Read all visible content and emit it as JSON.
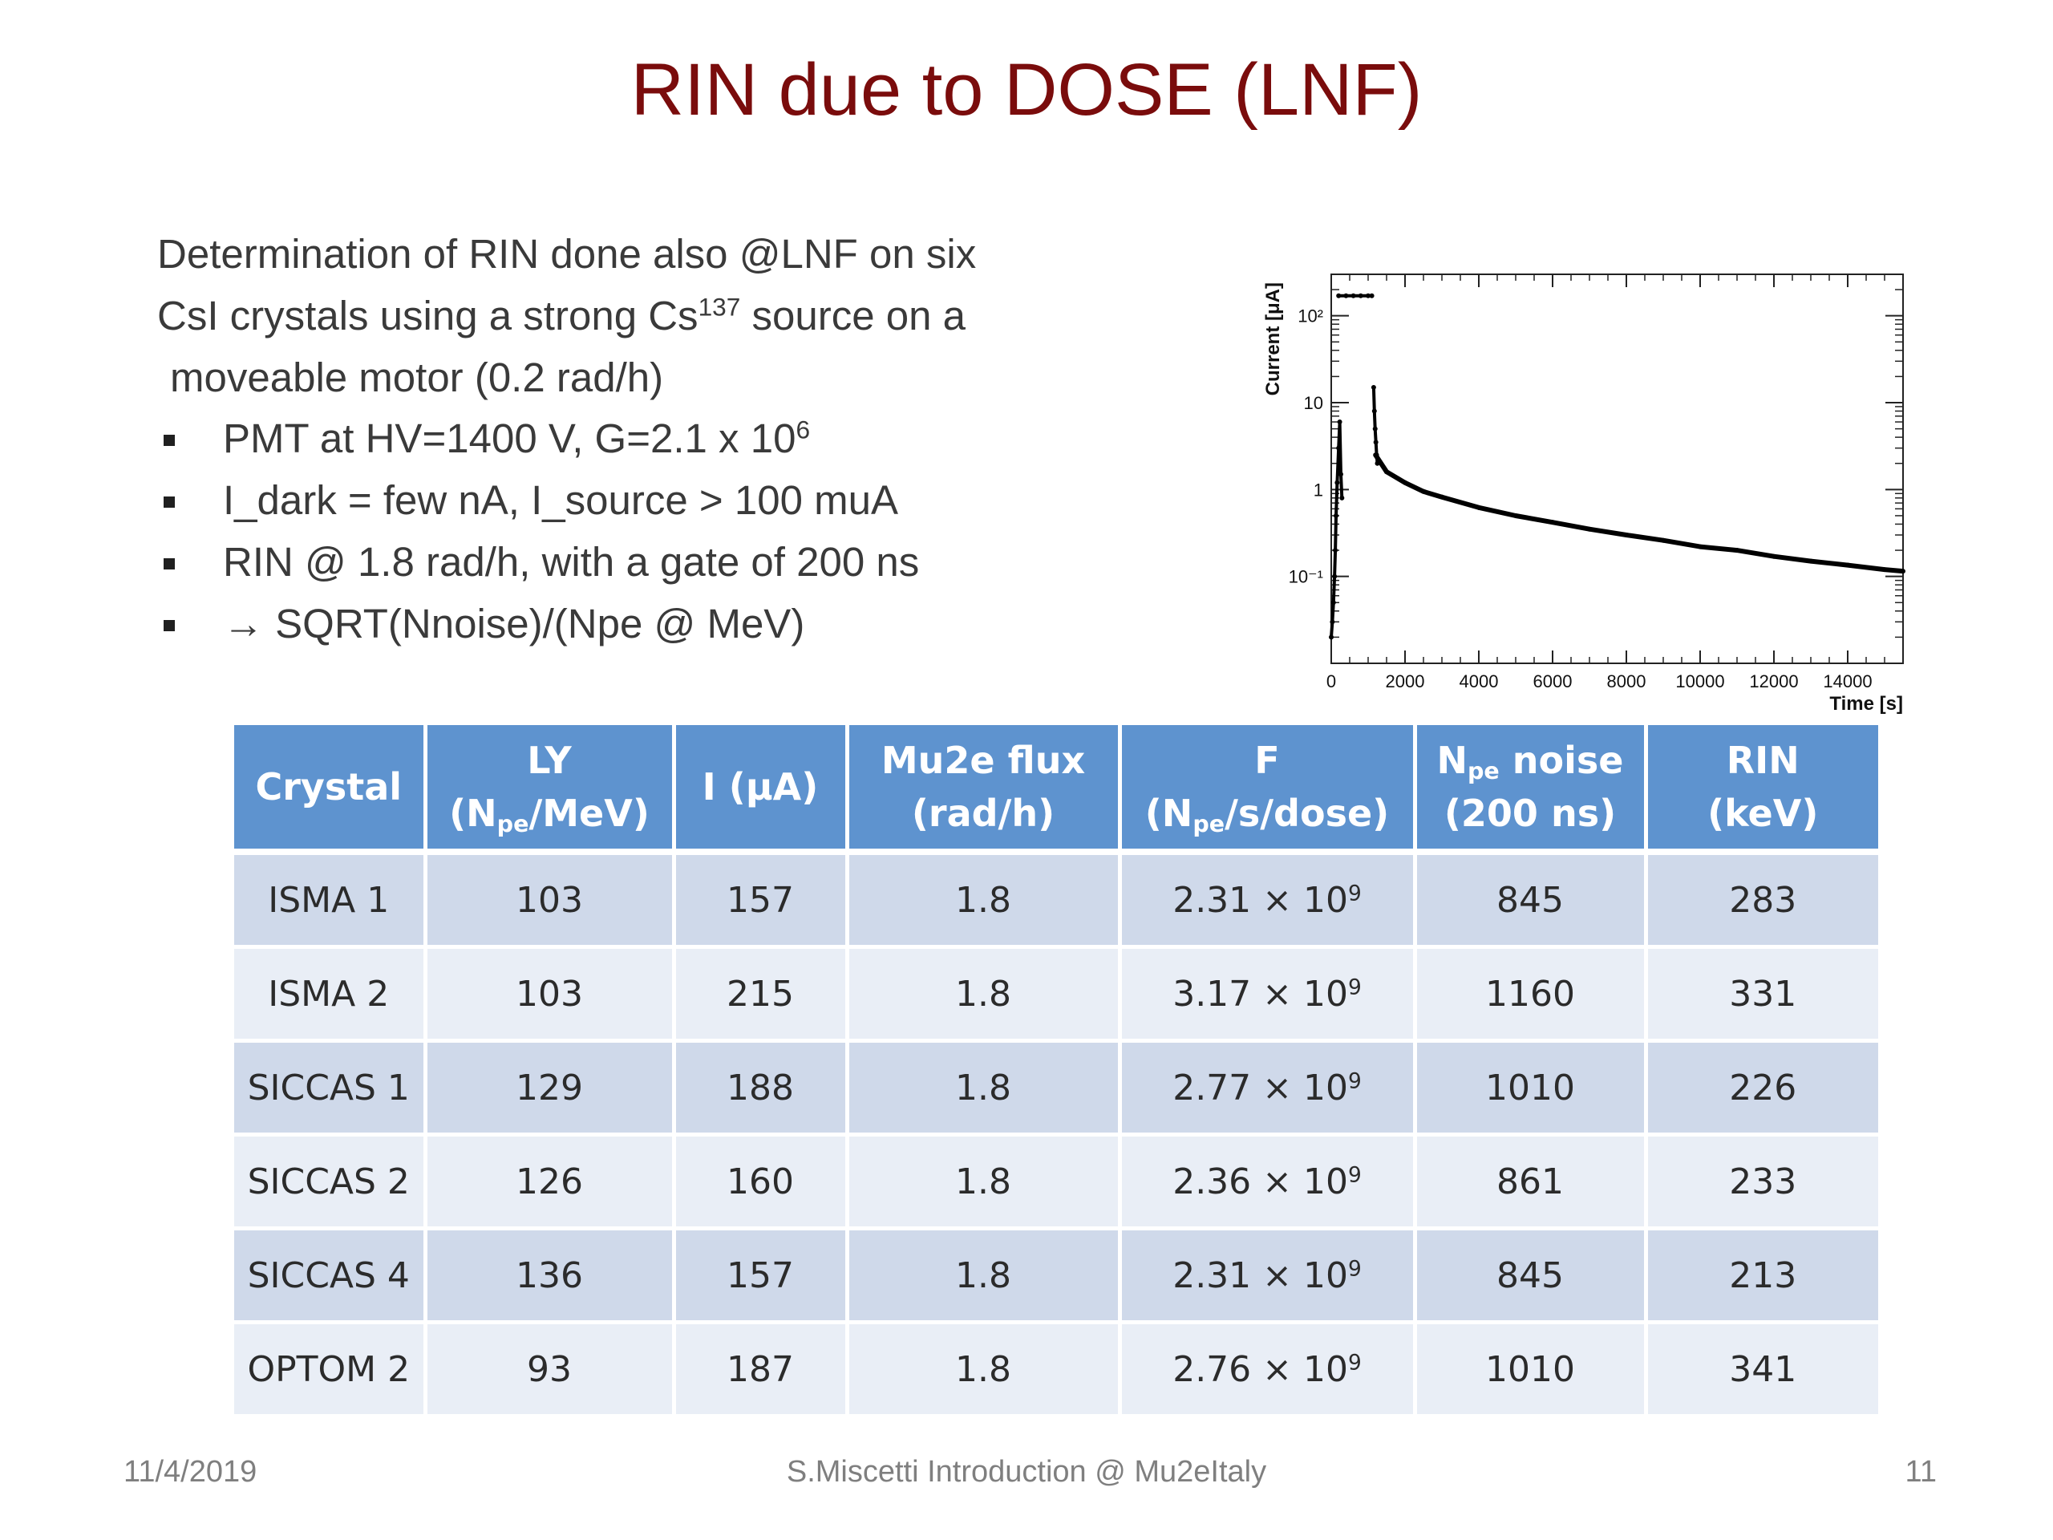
{
  "slide": {
    "title": "RIN due to DOSE (LNF)",
    "intro_lines": [
      "Determination of RIN done also @LNF on six",
      "CsI crystals using a strong Cs",
      "moveable motor (0.2 rad/h)"
    ],
    "intro_sup": "137",
    "intro_line2_tail": " source on a",
    "bullets": [
      {
        "text": "PMT at HV=1400 V, G=2.1 x 10",
        "sup": "6"
      },
      {
        "text": "I_dark = few nA, I_source > 100 muA"
      },
      {
        "text": "RIN @ 1.8 rad/h, with a gate of 200 ns"
      },
      {
        "text": "→ SQRT(Nnoise)/(Npe @ MeV)"
      }
    ]
  },
  "chart_data": {
    "type": "scatter",
    "xlabel": "Time [s]",
    "ylabel": "Current [μA]",
    "y_scale": "log",
    "xlim": [
      0,
      15500
    ],
    "ylim": [
      0.01,
      300
    ],
    "x_ticks": [
      "0",
      "2000",
      "4000",
      "6000",
      "8000",
      "10000",
      "12000",
      "14000"
    ],
    "x_tick_values": [
      0,
      2000,
      4000,
      6000,
      8000,
      10000,
      12000,
      14000
    ],
    "y_ticks": [
      "10⁻¹",
      "1",
      "10",
      "10²"
    ],
    "y_tick_values": [
      0.1,
      1,
      10,
      100
    ],
    "series": [
      {
        "x": [
          0,
          30,
          60,
          90,
          110,
          130,
          160,
          200,
          230,
          260,
          290
        ],
        "y": [
          0.02,
          0.03,
          0.05,
          0.1,
          0.2,
          0.5,
          1.2,
          3,
          6,
          1.5,
          0.8
        ]
      },
      {
        "x": [
          200,
          400,
          600,
          800,
          1000,
          1100
        ],
        "y": [
          170,
          170,
          170,
          170,
          170,
          170
        ]
      },
      {
        "x": [
          1150,
          1170,
          1190,
          1210,
          1230,
          1250
        ],
        "y": [
          15,
          8,
          5,
          3.5,
          2.5,
          2
        ]
      },
      {
        "x": [
          1200,
          1500,
          2000,
          2500,
          3000,
          4000,
          5000,
          6000,
          7000,
          8000,
          9000,
          10000,
          11000,
          12000,
          13000,
          14000,
          15000,
          15500
        ],
        "y": [
          2.5,
          1.6,
          1.2,
          0.95,
          0.82,
          0.62,
          0.5,
          0.42,
          0.35,
          0.3,
          0.26,
          0.22,
          0.2,
          0.17,
          0.15,
          0.135,
          0.12,
          0.115
        ]
      }
    ]
  },
  "table": {
    "headers": [
      {
        "line1": "Crystal"
      },
      {
        "line1": "LY",
        "line2_pre": "(N",
        "line2_sub": "pe",
        "line2_post": "/MeV)"
      },
      {
        "line1": "I (μA)"
      },
      {
        "line1": "Mu2e flux",
        "line2_pre": "(rad/h)"
      },
      {
        "line1": "F",
        "line2_pre": "(N",
        "line2_sub": "pe",
        "line2_post": "/s/dose)"
      },
      {
        "line1_pre": "N",
        "line1_sub": "pe",
        "line1_post": " noise",
        "line2_pre": "(200 ns)"
      },
      {
        "line1": "RIN",
        "line2_pre": "(keV)"
      }
    ],
    "rows": [
      {
        "crystal": "ISMA 1",
        "ly": "103",
        "i": "157",
        "flux": "1.8",
        "f": "2.31 × 10",
        "f_exp": "9",
        "noise": "845",
        "rin": "283"
      },
      {
        "crystal": "ISMA 2",
        "ly": "103",
        "i": "215",
        "flux": "1.8",
        "f": "3.17 × 10",
        "f_exp": "9",
        "noise": "1160",
        "rin": "331"
      },
      {
        "crystal": "SICCAS 1",
        "ly": "129",
        "i": "188",
        "flux": "1.8",
        "f": "2.77 × 10",
        "f_exp": "9",
        "noise": "1010",
        "rin": "226"
      },
      {
        "crystal": "SICCAS 2",
        "ly": "126",
        "i": "160",
        "flux": "1.8",
        "f": "2.36 × 10",
        "f_exp": "9",
        "noise": "861",
        "rin": "233"
      },
      {
        "crystal": "SICCAS 4",
        "ly": "136",
        "i": "157",
        "flux": "1.8",
        "f": "2.31 × 10",
        "f_exp": "9",
        "noise": "845",
        "rin": "213"
      },
      {
        "crystal": "OPTOM 2",
        "ly": "93",
        "i": "187",
        "flux": "1.8",
        "f": "2.76 × 10",
        "f_exp": "9",
        "noise": "1010",
        "rin": "341"
      }
    ]
  },
  "footer": {
    "date": "11/4/2019",
    "center": "S.Miscetti Introduction @ Mu2eItaly",
    "page": "11"
  }
}
